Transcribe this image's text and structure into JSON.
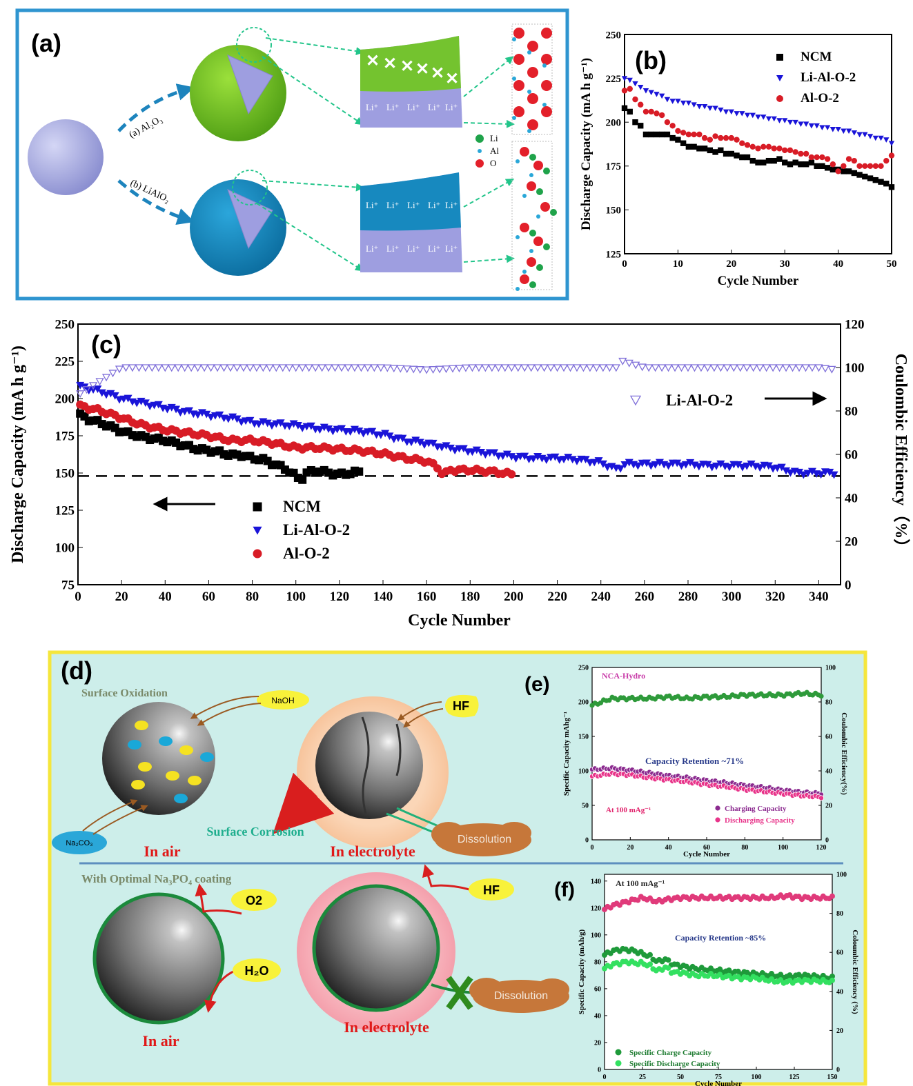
{
  "panel_a": {
    "label": "(a)",
    "route_a": "(a) Al₂O₃",
    "route_b": "(b) LiAlO₂",
    "li_label": "Li⁺",
    "cross": "✕",
    "legend": [
      {
        "name": "Li",
        "color": "#1fa34a"
      },
      {
        "name": "Al",
        "color": "#2aa7d8"
      },
      {
        "name": "O",
        "color": "#e3202a"
      }
    ]
  },
  "panel_d": {
    "label": "(d)",
    "surface_oxidation": "Surface Oxidation",
    "naoh": "NaOH",
    "hf": "HF",
    "na2co3": "Na₂CO₃",
    "surface_corrosion": "Surface Corrosion",
    "dissolution": "Dissolution",
    "in_air": "In air",
    "in_electrolyte": "In electrolyte",
    "coating": "With Optimal Na₃PO₄ coating",
    "o2": "O2",
    "h2o": "H₂O"
  },
  "chart_data": [
    {
      "panel": "(b)",
      "type": "scatter",
      "xlabel": "Cycle Number",
      "ylabel": "Discharge Capacity (mA h g⁻¹)",
      "xlim": [
        0,
        50
      ],
      "ylim": [
        125,
        250
      ],
      "xticks": [
        0,
        10,
        20,
        30,
        40,
        50
      ],
      "yticks": [
        125,
        150,
        175,
        200,
        225,
        250
      ],
      "legend": "top-right",
      "series": [
        {
          "name": "NCM",
          "marker": "square",
          "color": "#000000",
          "values": [
            208,
            206,
            200,
            198,
            193,
            193,
            193,
            193,
            193,
            191,
            190,
            188,
            186,
            186,
            185,
            185,
            184,
            183,
            184,
            182,
            182,
            181,
            180,
            180,
            178,
            177,
            177,
            178,
            178,
            179,
            177,
            176,
            177,
            176,
            176,
            177,
            175,
            175,
            174,
            173,
            173,
            172,
            172,
            171,
            170,
            169,
            168,
            167,
            166,
            165,
            163
          ]
        },
        {
          "name": "Li-Al-O-2",
          "marker": "triangle-down",
          "color": "#1a14d8",
          "values": [
            225,
            224,
            222,
            220,
            218,
            217,
            216,
            215,
            213,
            212,
            212,
            211,
            211,
            210,
            209,
            209,
            208,
            208,
            207,
            206,
            206,
            205,
            205,
            204,
            204,
            203,
            203,
            202,
            202,
            201,
            201,
            200,
            200,
            199,
            199,
            198,
            198,
            197,
            197,
            196,
            196,
            195,
            195,
            194,
            193,
            193,
            192,
            191,
            191,
            190,
            188
          ]
        },
        {
          "name": "Al-O-2",
          "marker": "circle",
          "color": "#d81c26",
          "values": [
            218,
            219,
            213,
            210,
            206,
            206,
            205,
            204,
            200,
            198,
            195,
            194,
            193,
            193,
            193,
            191,
            190,
            192,
            191,
            191,
            191,
            190,
            188,
            187,
            186,
            185,
            186,
            186,
            185,
            185,
            184,
            184,
            183,
            182,
            182,
            180,
            180,
            180,
            179,
            176,
            172,
            175,
            179,
            178,
            175,
            175,
            175,
            175,
            175,
            178,
            181
          ]
        }
      ]
    },
    {
      "panel": "(c)",
      "type": "scatter",
      "xlabel": "Cycle Number",
      "ylabel": "Discharge Capacity (mA h g⁻¹)",
      "y2label": "Coulombic Efficiency（%）",
      "xlim": [
        0,
        350
      ],
      "ylim": [
        75,
        250
      ],
      "y2lim": [
        0,
        120
      ],
      "xticks": [
        0,
        20,
        40,
        60,
        80,
        100,
        120,
        140,
        160,
        180,
        200,
        220,
        240,
        260,
        280,
        300,
        320,
        340
      ],
      "yticks": [
        75,
        100,
        125,
        150,
        175,
        200,
        225,
        250
      ],
      "y2ticks": [
        0,
        20,
        40,
        60,
        80,
        100,
        120
      ],
      "reference_line": 148,
      "legend": "bottom-left",
      "ce_legend": "Li-Al-O-2",
      "series": [
        {
          "name": "NCM",
          "marker": "square",
          "color": "#000000",
          "x": [
            1,
            5,
            10,
            15,
            20,
            25,
            30,
            35,
            40,
            45,
            50,
            55,
            60,
            65,
            70,
            75,
            80,
            85,
            90,
            95,
            100,
            102,
            105,
            110,
            115,
            120,
            125,
            130
          ],
          "y": [
            189,
            186,
            184,
            181,
            178,
            176,
            174,
            173,
            172,
            170,
            168,
            166,
            165,
            164,
            162,
            162,
            160,
            159,
            156,
            153,
            148,
            145,
            150,
            152,
            150,
            149,
            150,
            151
          ]
        },
        {
          "name": "Li-Al-O-2",
          "marker": "triangle-down",
          "color": "#1a14d8",
          "x": [
            1,
            10,
            20,
            30,
            40,
            50,
            60,
            70,
            80,
            90,
            100,
            110,
            120,
            130,
            140,
            150,
            160,
            170,
            180,
            190,
            200,
            210,
            220,
            230,
            240,
            248,
            250,
            260,
            270,
            280,
            290,
            300,
            310,
            320,
            330,
            340,
            348
          ],
          "y": [
            208,
            205,
            200,
            197,
            194,
            191,
            189,
            187,
            184,
            183,
            182,
            180,
            179,
            178,
            176,
            172,
            170,
            167,
            165,
            163,
            161,
            160,
            160,
            159,
            157,
            152,
            156,
            156,
            156,
            156,
            155,
            155,
            155,
            154,
            150,
            150,
            150
          ]
        },
        {
          "name": "Al-O-2",
          "marker": "circle",
          "color": "#d81c26",
          "x": [
            1,
            10,
            20,
            30,
            40,
            50,
            60,
            70,
            80,
            90,
            100,
            110,
            120,
            130,
            140,
            150,
            160,
            165,
            168,
            170,
            180,
            190,
            200
          ],
          "y": [
            195,
            192,
            187,
            182,
            179,
            177,
            175,
            172,
            172,
            170,
            167,
            167,
            166,
            165,
            163,
            160,
            158,
            154,
            148,
            152,
            152,
            151,
            149
          ]
        },
        {
          "name": "Li-Al-O-2 CE",
          "marker": "triangle-down-open",
          "color": "#7f6fd9",
          "axis": "y2",
          "x": [
            1,
            20,
            40,
            60,
            80,
            100,
            120,
            140,
            160,
            180,
            200,
            220,
            240,
            248,
            250,
            260,
            280,
            300,
            320,
            340,
            348
          ],
          "y": [
            88,
            100,
            100,
            100,
            100,
            100,
            100,
            100,
            99,
            100,
            100,
            100,
            100,
            100,
            103,
            100,
            100,
            100,
            100,
            100,
            99
          ]
        }
      ]
    },
    {
      "panel": "(e)",
      "type": "scatter",
      "title": "NCA-Hydro",
      "xlabel": "Cycle Number",
      "ylabel": "Specific Capacity mAhg⁻¹",
      "y2label": "Coulombic Efficiency(%)",
      "xlim": [
        0,
        120
      ],
      "ylim": [
        0,
        250
      ],
      "y2lim": [
        0,
        100
      ],
      "xticks": [
        0,
        20,
        40,
        60,
        80,
        100,
        120
      ],
      "yticks": [
        0,
        50,
        100,
        150,
        200,
        250
      ],
      "y2ticks": [
        0,
        20,
        40,
        60,
        80,
        100
      ],
      "annotation": "Capacity Retention ~71%",
      "condition": "At 100 mAg⁻¹",
      "series": [
        {
          "name": "Charging Capacity",
          "marker": "circle-half",
          "color": "#8b2a8f",
          "x": [
            0,
            10,
            20,
            30,
            40,
            50,
            60,
            70,
            80,
            90,
            100,
            110,
            120
          ],
          "y": [
            102,
            104,
            101,
            97,
            93,
            90,
            86,
            83,
            79,
            76,
            72,
            69,
            67
          ]
        },
        {
          "name": "Discharging Capacity",
          "marker": "circle-half",
          "color": "#e8348a",
          "x": [
            0,
            10,
            20,
            30,
            40,
            50,
            60,
            70,
            80,
            90,
            100,
            110,
            120
          ],
          "y": [
            92,
            96,
            94,
            90,
            87,
            84,
            80,
            77,
            73,
            70,
            67,
            64,
            62
          ]
        },
        {
          "name": "Coulombic Efficiency",
          "marker": "circle",
          "color": "#2e9a3a",
          "axis": "y2",
          "x": [
            0,
            10,
            20,
            30,
            40,
            50,
            60,
            70,
            80,
            90,
            100,
            110,
            120
          ],
          "y": [
            78,
            82,
            82,
            82,
            83,
            82,
            83,
            83,
            84,
            84,
            84,
            85,
            84
          ]
        }
      ]
    },
    {
      "panel": "(f)",
      "type": "scatter",
      "xlabel": "Cycle Number",
      "ylabel": "Specific Capacity (mAh/g)",
      "y2label": "Coloumbic Efficiency (%)",
      "xlim": [
        0,
        150
      ],
      "ylim": [
        0,
        145
      ],
      "y2lim": [
        0,
        100
      ],
      "xticks": [
        0,
        25,
        50,
        75,
        100,
        125,
        150
      ],
      "yticks": [
        0,
        20,
        40,
        60,
        80,
        100,
        120,
        140
      ],
      "y2ticks": [
        0,
        20,
        40,
        60,
        80,
        100
      ],
      "annotation": "Capacity Retention ~85%",
      "condition": "At 100 mAg⁻¹",
      "series": [
        {
          "name": "Specific Charge Capacity",
          "marker": "circle",
          "color": "#1e9a3a",
          "x": [
            0,
            5,
            10,
            15,
            20,
            25,
            30,
            35,
            40,
            45,
            50,
            60,
            70,
            80,
            90,
            100,
            110,
            120,
            130,
            140,
            150
          ],
          "y": [
            85,
            88,
            89,
            89,
            88,
            86,
            84,
            80,
            82,
            78,
            77,
            75,
            74,
            73,
            72,
            71,
            70,
            69,
            70,
            69,
            68
          ]
        },
        {
          "name": "Specific Discharge Capacity",
          "marker": "circle",
          "color": "#33e060",
          "x": [
            0,
            5,
            10,
            15,
            20,
            25,
            30,
            35,
            40,
            45,
            50,
            60,
            70,
            80,
            90,
            100,
            110,
            120,
            130,
            140,
            150
          ],
          "y": [
            75,
            78,
            79,
            80,
            79,
            79,
            77,
            73,
            76,
            72,
            72,
            70,
            70,
            69,
            68,
            68,
            66,
            65,
            66,
            66,
            65
          ]
        },
        {
          "name": "Coulombic Efficiency",
          "marker": "circle",
          "color": "#e03a7a",
          "axis": "y2",
          "x": [
            0,
            5,
            10,
            15,
            20,
            25,
            30,
            35,
            40,
            50,
            60,
            70,
            80,
            90,
            100,
            110,
            120,
            130,
            140,
            150
          ],
          "y": [
            82,
            84,
            85,
            86,
            87,
            88,
            87,
            86,
            87,
            88,
            88,
            88,
            88,
            88,
            88,
            88,
            89,
            88,
            88,
            88
          ]
        }
      ]
    }
  ]
}
